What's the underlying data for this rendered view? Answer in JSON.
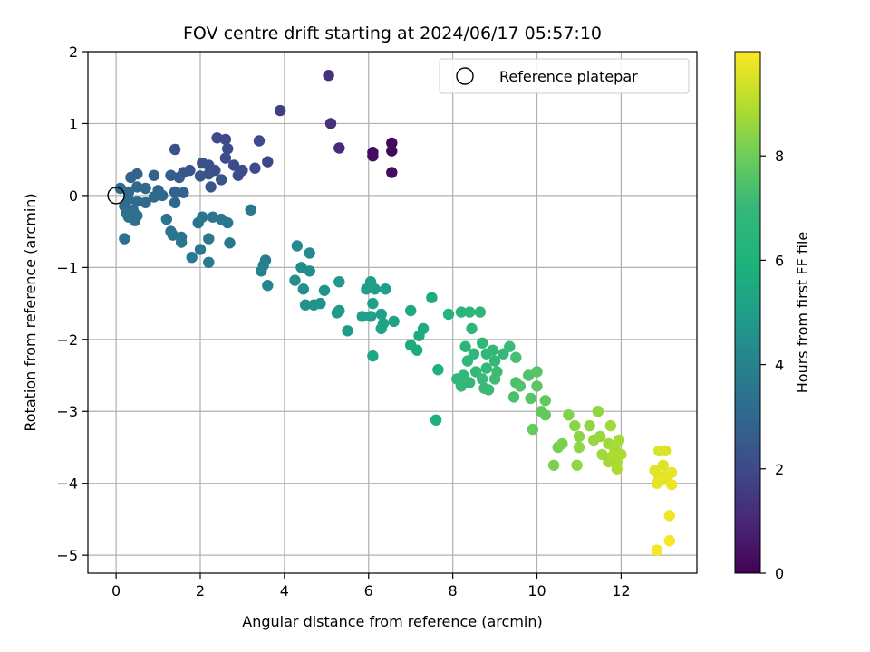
{
  "chart_data": {
    "type": "scatter",
    "title": "FOV centre drift starting at 2024/06/17 05:57:10",
    "xlabel": "Angular distance from reference (arcmin)",
    "ylabel": "Rotation from reference (arcmin)",
    "xlim": [
      -0.67,
      13.8
    ],
    "ylim": [
      -5.25,
      2.0
    ],
    "xticks": [
      0,
      2,
      4,
      6,
      8,
      10,
      12
    ],
    "yticks": [
      2,
      1,
      0,
      -1,
      -2,
      -3,
      -4,
      -5
    ],
    "xtick_labels": [
      "0",
      "2",
      "4",
      "6",
      "8",
      "10",
      "12"
    ],
    "ytick_labels": [
      "2",
      "1",
      "0",
      "−1",
      "−2",
      "−3",
      "−4",
      "−5"
    ],
    "grid": true,
    "legend": {
      "position": "top-right",
      "entries": [
        "Reference platepar"
      ]
    },
    "reference_point": {
      "x": 0,
      "y": 0
    },
    "colorbar": {
      "label": "Hours from first FF file",
      "colormap": "viridis",
      "range": [
        0,
        10
      ],
      "ticks": [
        0,
        2,
        4,
        6,
        8
      ],
      "tick_labels": [
        "0",
        "2",
        "4",
        "6",
        "8"
      ]
    },
    "points": [
      [
        5.05,
        1.67,
        1.3
      ],
      [
        5.1,
        1.0,
        1.2
      ],
      [
        5.3,
        0.66,
        1.1
      ],
      [
        3.9,
        1.18,
        1.7
      ],
      [
        6.1,
        0.6,
        0.25
      ],
      [
        6.1,
        0.55,
        0.3
      ],
      [
        6.55,
        0.73,
        0.2
      ],
      [
        6.55,
        0.62,
        0.2
      ],
      [
        6.55,
        0.32,
        0.3
      ],
      [
        2.4,
        0.8,
        2.0
      ],
      [
        2.6,
        0.78,
        2.0
      ],
      [
        3.4,
        0.76,
        2.0
      ],
      [
        2.65,
        0.65,
        2.1
      ],
      [
        1.4,
        0.64,
        2.3
      ],
      [
        2.2,
        0.42,
        2.2
      ],
      [
        2.35,
        0.35,
        2.2
      ],
      [
        2.6,
        0.52,
        2.1
      ],
      [
        2.8,
        0.42,
        2.0
      ],
      [
        3.0,
        0.35,
        2.0
      ],
      [
        3.3,
        0.38,
        2.0
      ],
      [
        3.6,
        0.47,
        1.9
      ],
      [
        2.05,
        0.45,
        2.3
      ],
      [
        1.6,
        0.32,
        2.4
      ],
      [
        1.75,
        0.35,
        2.4
      ],
      [
        2.0,
        0.27,
        2.4
      ],
      [
        2.2,
        0.3,
        2.3
      ],
      [
        2.5,
        0.22,
        2.3
      ],
      [
        2.9,
        0.28,
        2.2
      ],
      [
        2.25,
        0.12,
        2.4
      ],
      [
        0.5,
        0.3,
        2.8
      ],
      [
        0.35,
        0.25,
        2.8
      ],
      [
        0.9,
        0.28,
        2.7
      ],
      [
        1.3,
        0.28,
        2.6
      ],
      [
        1.5,
        0.25,
        2.6
      ],
      [
        0.1,
        0.1,
        3.0
      ],
      [
        0.3,
        0.05,
        3.0
      ],
      [
        0.5,
        0.12,
        3.0
      ],
      [
        0.7,
        0.1,
        3.0
      ],
      [
        1.0,
        0.07,
        2.9
      ],
      [
        1.4,
        0.05,
        2.8
      ],
      [
        1.6,
        0.04,
        2.8
      ],
      [
        0.3,
        -0.05,
        3.1
      ],
      [
        0.5,
        -0.08,
        3.1
      ],
      [
        0.7,
        -0.1,
        3.1
      ],
      [
        0.9,
        -0.02,
        3.1
      ],
      [
        1.1,
        0.0,
        3.0
      ],
      [
        1.4,
        -0.1,
        3.0
      ],
      [
        0.2,
        -0.15,
        3.2
      ],
      [
        0.4,
        -0.2,
        3.2
      ],
      [
        0.3,
        -0.3,
        3.3
      ],
      [
        0.45,
        -0.35,
        3.3
      ],
      [
        0.25,
        -0.25,
        3.3
      ],
      [
        0.5,
        -0.28,
        3.3
      ],
      [
        0.2,
        -0.6,
        3.3
      ],
      [
        1.2,
        -0.33,
        3.4
      ],
      [
        1.3,
        -0.5,
        3.4
      ],
      [
        1.35,
        -0.55,
        3.4
      ],
      [
        1.55,
        -0.58,
        3.5
      ],
      [
        1.55,
        -0.65,
        3.5
      ],
      [
        1.95,
        -0.38,
        3.5
      ],
      [
        2.05,
        -0.3,
        3.5
      ],
      [
        2.3,
        -0.3,
        3.5
      ],
      [
        2.5,
        -0.33,
        3.5
      ],
      [
        2.65,
        -0.38,
        3.6
      ],
      [
        2.2,
        -0.6,
        3.6
      ],
      [
        2.7,
        -0.66,
        3.6
      ],
      [
        2.0,
        -0.75,
        3.6
      ],
      [
        1.8,
        -0.86,
        3.7
      ],
      [
        2.2,
        -0.93,
        3.7
      ],
      [
        3.2,
        -0.2,
        3.6
      ],
      [
        3.55,
        -0.9,
        3.9
      ],
      [
        3.5,
        -0.97,
        3.9
      ],
      [
        3.45,
        -1.05,
        4.0
      ],
      [
        3.6,
        -1.25,
        4.1
      ],
      [
        4.3,
        -0.7,
        4.3
      ],
      [
        4.6,
        -0.8,
        4.3
      ],
      [
        4.4,
        -1.0,
        4.4
      ],
      [
        4.6,
        -1.05,
        4.4
      ],
      [
        4.25,
        -1.18,
        4.5
      ],
      [
        4.45,
        -1.3,
        4.5
      ],
      [
        4.5,
        -1.52,
        4.6
      ],
      [
        4.7,
        -1.52,
        4.6
      ],
      [
        4.85,
        -1.5,
        4.6
      ],
      [
        4.95,
        -1.32,
        4.6
      ],
      [
        5.3,
        -1.2,
        4.8
      ],
      [
        5.3,
        -1.6,
        4.8
      ],
      [
        5.25,
        -1.63,
        4.8
      ],
      [
        5.5,
        -1.88,
        4.9
      ],
      [
        5.85,
        -1.68,
        5.0
      ],
      [
        6.05,
        -1.2,
        5.0
      ],
      [
        5.95,
        -1.3,
        5.0
      ],
      [
        6.15,
        -1.3,
        5.0
      ],
      [
        6.1,
        -1.5,
        5.1
      ],
      [
        6.05,
        -1.68,
        5.1
      ],
      [
        6.3,
        -1.65,
        5.1
      ],
      [
        6.4,
        -1.3,
        5.1
      ],
      [
        6.35,
        -1.78,
        5.2
      ],
      [
        6.3,
        -1.85,
        5.2
      ],
      [
        6.6,
        -1.75,
        5.2
      ],
      [
        6.1,
        -2.23,
        5.4
      ],
      [
        7.0,
        -1.6,
        5.5
      ],
      [
        7.0,
        -2.08,
        5.6
      ],
      [
        7.15,
        -2.15,
        5.6
      ],
      [
        7.2,
        -1.95,
        5.6
      ],
      [
        7.3,
        -1.85,
        5.6
      ],
      [
        7.5,
        -1.42,
        5.6
      ],
      [
        7.65,
        -2.42,
        5.8
      ],
      [
        7.6,
        -3.12,
        5.9
      ],
      [
        7.9,
        -1.65,
        6.3
      ],
      [
        8.2,
        -1.62,
        6.5
      ],
      [
        8.4,
        -1.62,
        6.6
      ],
      [
        8.45,
        -1.85,
        6.6
      ],
      [
        8.65,
        -1.62,
        6.7
      ],
      [
        8.3,
        -2.1,
        6.7
      ],
      [
        8.35,
        -2.3,
        6.8
      ],
      [
        8.5,
        -2.2,
        6.8
      ],
      [
        8.7,
        -2.05,
        6.8
      ],
      [
        8.8,
        -2.2,
        6.9
      ],
      [
        8.95,
        -2.15,
        6.9
      ],
      [
        8.55,
        -2.45,
        6.9
      ],
      [
        8.8,
        -2.4,
        7.0
      ],
      [
        9.0,
        -2.3,
        7.0
      ],
      [
        9.2,
        -2.2,
        7.0
      ],
      [
        9.35,
        -2.1,
        7.1
      ],
      [
        8.1,
        -2.55,
        7.0
      ],
      [
        8.25,
        -2.5,
        7.0
      ],
      [
        8.4,
        -2.6,
        7.0
      ],
      [
        8.2,
        -2.65,
        7.0
      ],
      [
        8.7,
        -2.55,
        7.1
      ],
      [
        8.75,
        -2.68,
        7.1
      ],
      [
        8.85,
        -2.7,
        7.1
      ],
      [
        9.0,
        -2.55,
        7.2
      ],
      [
        9.05,
        -2.45,
        7.2
      ],
      [
        9.5,
        -2.25,
        7.3
      ],
      [
        9.5,
        -2.6,
        7.4
      ],
      [
        9.45,
        -2.8,
        7.4
      ],
      [
        9.6,
        -2.65,
        7.5
      ],
      [
        9.8,
        -2.5,
        7.5
      ],
      [
        9.85,
        -2.82,
        7.6
      ],
      [
        10.0,
        -2.45,
        7.6
      ],
      [
        10.0,
        -2.65,
        7.7
      ],
      [
        10.2,
        -2.85,
        7.8
      ],
      [
        10.1,
        -3.0,
        7.8
      ],
      [
        10.2,
        -3.05,
        7.8
      ],
      [
        9.9,
        -3.25,
        7.9
      ],
      [
        10.5,
        -3.5,
        8.1
      ],
      [
        10.4,
        -3.75,
        8.2
      ],
      [
        10.6,
        -3.45,
        8.2
      ],
      [
        10.75,
        -3.05,
        8.3
      ],
      [
        10.9,
        -3.2,
        8.4
      ],
      [
        11.0,
        -3.35,
        8.4
      ],
      [
        11.0,
        -3.5,
        8.5
      ],
      [
        10.95,
        -3.75,
        8.5
      ],
      [
        11.25,
        -3.2,
        8.5
      ],
      [
        11.45,
        -3.0,
        8.5
      ],
      [
        11.35,
        -3.4,
        8.6
      ],
      [
        11.5,
        -3.35,
        8.6
      ],
      [
        11.55,
        -3.6,
        8.7
      ],
      [
        11.7,
        -3.45,
        8.7
      ],
      [
        11.7,
        -3.7,
        8.7
      ],
      [
        11.75,
        -3.2,
        8.7
      ],
      [
        11.85,
        -3.52,
        8.8
      ],
      [
        11.9,
        -3.7,
        8.8
      ],
      [
        11.95,
        -3.4,
        8.8
      ],
      [
        12.0,
        -3.6,
        8.9
      ],
      [
        11.9,
        -3.8,
        8.9
      ],
      [
        11.8,
        -3.62,
        8.9
      ],
      [
        12.9,
        -3.55,
        9.5
      ],
      [
        13.05,
        -3.55,
        9.5
      ],
      [
        12.8,
        -3.82,
        9.6
      ],
      [
        12.9,
        -3.9,
        9.6
      ],
      [
        13.0,
        -3.75,
        9.6
      ],
      [
        13.1,
        -3.88,
        9.6
      ],
      [
        12.85,
        -4.0,
        9.7
      ],
      [
        13.2,
        -3.85,
        9.7
      ],
      [
        13.0,
        -3.95,
        9.7
      ],
      [
        13.2,
        -4.02,
        9.8
      ],
      [
        13.15,
        -4.45,
        9.8
      ],
      [
        13.15,
        -4.8,
        9.9
      ],
      [
        12.85,
        -4.93,
        9.9
      ]
    ]
  }
}
